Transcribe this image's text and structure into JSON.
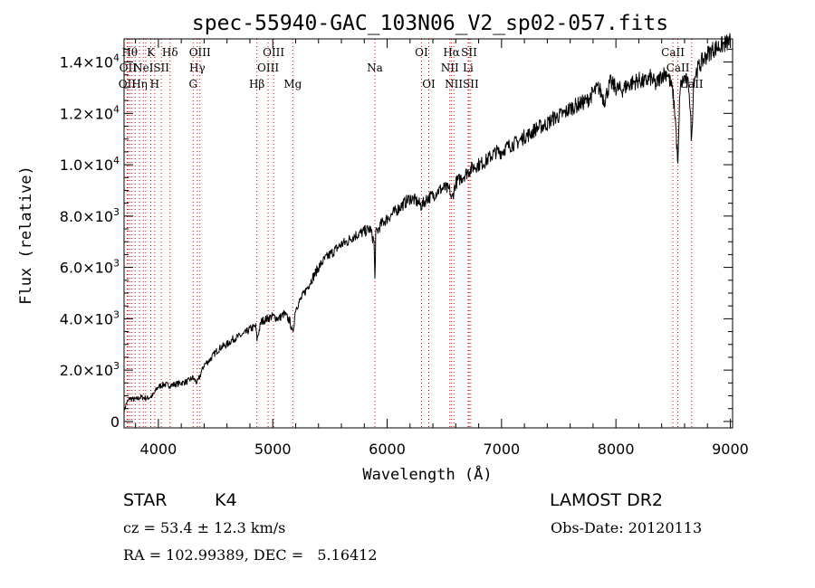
{
  "chart_data": {
    "type": "line",
    "title": "spec-55940-GAC_103N06_V2_sp02-057.fits",
    "xlabel": "Wavelength (Å)",
    "ylabel": "Flux (relative)",
    "xlim": [
      3700,
      9020
    ],
    "ylim": [
      -250,
      14900
    ],
    "x_ticks": [
      4000,
      5000,
      6000,
      7000,
      8000,
      9000
    ],
    "x_tick_labels": [
      "4000",
      "5000",
      "6000",
      "7000",
      "8000",
      "9000"
    ],
    "y_ticks": [
      0,
      2000,
      4000,
      6000,
      8000,
      10000,
      12000,
      14000
    ],
    "y_tick_labels": [
      {
        "mant": "0",
        "exp": ""
      },
      {
        "mant": "2.0×10",
        "exp": "3"
      },
      {
        "mant": "4.0×10",
        "exp": "3"
      },
      {
        "mant": "6.0×10",
        "exp": "3"
      },
      {
        "mant": "8.0×10",
        "exp": "3"
      },
      {
        "mant": "1.0×10",
        "exp": "4"
      },
      {
        "mant": "1.2×10",
        "exp": "4"
      },
      {
        "mant": "1.4×10",
        "exp": "4"
      }
    ],
    "series": [
      {
        "color": "#000000",
        "x": [
          3700,
          3720,
          3750,
          3800,
          3850,
          3900,
          3950,
          3990,
          4000,
          4050,
          4100,
          4150,
          4200,
          4250,
          4300,
          4340,
          4400,
          4450,
          4500,
          4550,
          4600,
          4650,
          4700,
          4750,
          4800,
          4850,
          4862,
          4900,
          4950,
          5000,
          5050,
          5100,
          5150,
          5175,
          5200,
          5250,
          5300,
          5350,
          5400,
          5450,
          5500,
          5550,
          5600,
          5650,
          5700,
          5750,
          5800,
          5850,
          5885,
          5893,
          5900,
          5950,
          6000,
          6050,
          6100,
          6150,
          6200,
          6250,
          6300,
          6350,
          6400,
          6450,
          6500,
          6550,
          6563,
          6600,
          6650,
          6700,
          6750,
          6800,
          6850,
          6900,
          6950,
          7000,
          7050,
          7100,
          7150,
          7200,
          7250,
          7300,
          7350,
          7400,
          7450,
          7500,
          7550,
          7600,
          7650,
          7700,
          7750,
          7800,
          7850,
          7900,
          7950,
          8000,
          8050,
          8100,
          8150,
          8200,
          8250,
          8300,
          8350,
          8400,
          8450,
          8498,
          8520,
          8542,
          8560,
          8600,
          8640,
          8662,
          8680,
          8700,
          8750,
          8800,
          8850,
          8900,
          8950,
          9000
        ],
        "y": [
          400,
          700,
          900,
          850,
          950,
          900,
          1000,
          1300,
          1350,
          1450,
          1400,
          1450,
          1500,
          1550,
          1700,
          1500,
          2200,
          2400,
          2700,
          2900,
          3000,
          3200,
          3300,
          3400,
          3600,
          3700,
          3200,
          3900,
          4000,
          4100,
          4000,
          4200,
          3900,
          3400,
          4400,
          4800,
          5200,
          5600,
          6000,
          6300,
          6500,
          6700,
          6900,
          7000,
          7200,
          7300,
          7400,
          7500,
          7000,
          5500,
          7300,
          7700,
          7900,
          8100,
          8300,
          8500,
          8700,
          8600,
          8400,
          8700,
          8800,
          9000,
          9100,
          9000,
          8600,
          9300,
          9500,
          9700,
          9900,
          10000,
          10100,
          10300,
          10500,
          10500,
          10700,
          10800,
          10900,
          11100,
          11200,
          11400,
          11500,
          11600,
          11800,
          11900,
          12000,
          12200,
          12300,
          12400,
          12500,
          12800,
          13000,
          12500,
          13200,
          13000,
          12900,
          13100,
          13200,
          13300,
          13200,
          13400,
          13100,
          13500,
          13600,
          12800,
          11800,
          9900,
          13000,
          13400,
          13000,
          10900,
          13300,
          13600,
          14000,
          14300,
          14500,
          14600,
          14700,
          14800
        ]
      }
    ],
    "line_marks": [
      {
        "x": 3727,
        "label": "OII",
        "row": 3
      },
      {
        "x": 3734,
        "label": "OII",
        "row": 2
      },
      {
        "x": 3750,
        "label": "Hθ",
        "row": 1
      },
      {
        "x": 3770,
        "label": "",
        "row": 0
      },
      {
        "x": 3797,
        "label": "",
        "row": 0
      },
      {
        "x": 3835,
        "label": "Hη",
        "row": 3
      },
      {
        "x": 3869,
        "label": "NeI",
        "row": 2
      },
      {
        "x": 3889,
        "label": "",
        "row": 0
      },
      {
        "x": 3934,
        "label": "K",
        "row": 1
      },
      {
        "x": 3968,
        "label": "H",
        "row": 3
      },
      {
        "x": 4026,
        "label": "SII",
        "row": 2
      },
      {
        "x": 4102,
        "label": "Hδ",
        "row": 1
      },
      {
        "x": 4304,
        "label": "G",
        "row": 3
      },
      {
        "x": 4340,
        "label": "Hγ",
        "row": 2
      },
      {
        "x": 4363,
        "label": "OIII",
        "row": 1
      },
      {
        "x": 4861,
        "label": "Hβ",
        "row": 3
      },
      {
        "x": 4959,
        "label": "OIII",
        "row": 2
      },
      {
        "x": 5007,
        "label": "OIII",
        "row": 1
      },
      {
        "x": 5175,
        "label": "Mg",
        "row": 3
      },
      {
        "x": 5893,
        "label": "Na",
        "row": 2
      },
      {
        "x": 6300,
        "label": "OI",
        "row": 1
      },
      {
        "x": 6364,
        "label": "OI",
        "row": 3
      },
      {
        "x": 6548,
        "label": "NII",
        "row": 2
      },
      {
        "x": 6563,
        "label": "Hα",
        "row": 1
      },
      {
        "x": 6583,
        "label": "NII",
        "row": 3
      },
      {
        "x": 6708,
        "label": "Li",
        "row": 2
      },
      {
        "x": 6716,
        "label": "SII",
        "row": 1
      },
      {
        "x": 6731,
        "label": "SII",
        "row": 3
      },
      {
        "x": 8498,
        "label": "CaII",
        "row": 1
      },
      {
        "x": 8542,
        "label": "CaII",
        "row": 2
      },
      {
        "x": 8662,
        "label": "CaII",
        "row": 3
      }
    ]
  },
  "info": {
    "class_type": "STAR",
    "subclass": "K4",
    "survey": "LAMOST DR2",
    "cz": "cz = 53.4 ± 12.3 km/s",
    "obs_date": "Obs-Date: 20120113",
    "coords": "RA = 102.99389, DEC =   5.16412"
  }
}
